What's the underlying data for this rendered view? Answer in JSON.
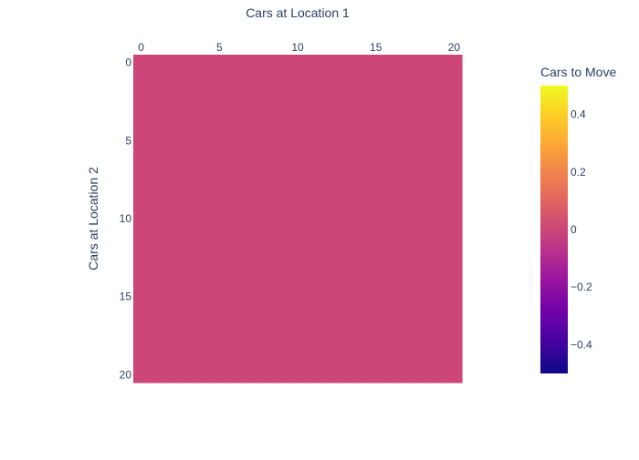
{
  "chart_data": {
    "type": "heatmap",
    "title": "",
    "xlabel": "Cars at Location 1",
    "ylabel": "Cars at Location 2",
    "x": [
      0,
      1,
      2,
      3,
      4,
      5,
      6,
      7,
      8,
      9,
      10,
      11,
      12,
      13,
      14,
      15,
      16,
      17,
      18,
      19,
      20
    ],
    "y": [
      0,
      1,
      2,
      3,
      4,
      5,
      6,
      7,
      8,
      9,
      10,
      11,
      12,
      13,
      14,
      15,
      16,
      17,
      18,
      19,
      20
    ],
    "x_ticks": [
      "0",
      "5",
      "10",
      "15",
      "20"
    ],
    "y_ticks": [
      "0",
      "5",
      "10",
      "15",
      "20"
    ],
    "x_axis_position": "top",
    "y_axis_reversed": true,
    "z_fill_value": 0,
    "colorbar": {
      "title": "Cars to Move",
      "range": [
        -0.5,
        0.5
      ],
      "ticks": [
        "0.4",
        "0.2",
        "0",
        "−0.2",
        "−0.4"
      ],
      "tick_values": [
        0.4,
        0.2,
        0,
        -0.2,
        -0.4
      ],
      "colorscale": [
        [
          0.0,
          "#0d0887"
        ],
        [
          0.111,
          "#46039f"
        ],
        [
          0.222,
          "#7201a8"
        ],
        [
          0.333,
          "#9c179e"
        ],
        [
          0.444,
          "#bd3786"
        ],
        [
          0.555,
          "#d8576b"
        ],
        [
          0.666,
          "#ed7953"
        ],
        [
          0.777,
          "#fb9f3a"
        ],
        [
          0.888,
          "#fdca26"
        ],
        [
          1.0,
          "#f0f921"
        ]
      ]
    },
    "cell_color": "#cc4778",
    "grid": false
  }
}
